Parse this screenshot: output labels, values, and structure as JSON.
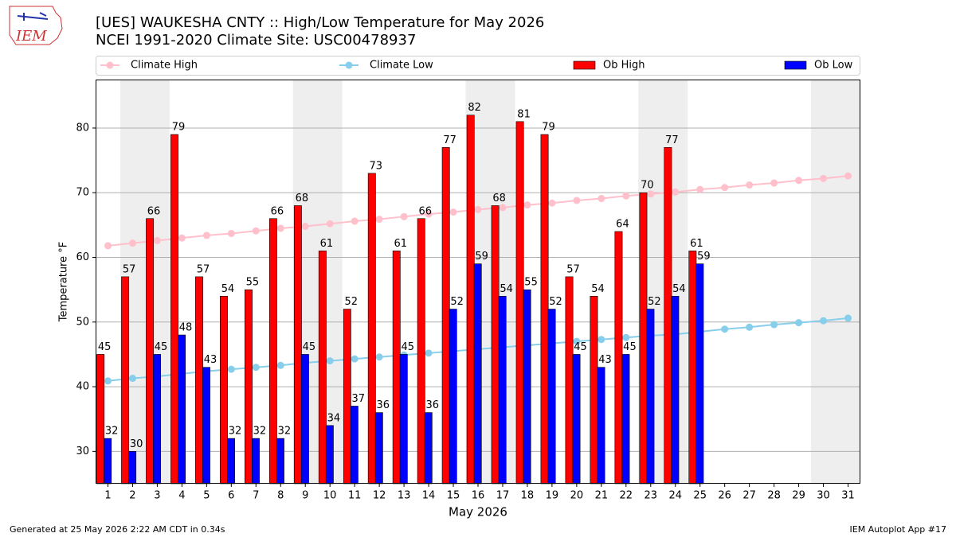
{
  "logo": "IEM",
  "footer_left": "Generated at 25 May 2026 2:22 AM CDT in 0.34s",
  "footer_right": "IEM Autoplot App #17",
  "chart_data": {
    "type": "bar",
    "title": "[UES] WAUKESHA CNTY :: High/Low Temperature for May 2026",
    "subtitle": "NCEI 1991-2020 Climate Site: USC00478937",
    "x_label": "May 2026",
    "y_label": "Temperature °F",
    "categories": [
      "1",
      "2",
      "3",
      "4",
      "5",
      "6",
      "7",
      "8",
      "9",
      "10",
      "11",
      "12",
      "13",
      "14",
      "15",
      "16",
      "17",
      "18",
      "19",
      "20",
      "21",
      "22",
      "23",
      "24",
      "25",
      "26",
      "27",
      "28",
      "29",
      "30",
      "31"
    ],
    "ylim": [
      25,
      87.5
    ],
    "yticks": [
      30,
      40,
      50,
      60,
      70,
      80
    ],
    "grid": true,
    "series": [
      {
        "name": "Climate High",
        "type": "line",
        "color": "#ffc0cb",
        "values": [
          61.8,
          62.2,
          62.6,
          63.0,
          63.4,
          63.7,
          64.1,
          64.5,
          64.8,
          65.2,
          65.6,
          65.9,
          66.3,
          66.7,
          67.0,
          67.4,
          67.7,
          68.1,
          68.4,
          68.8,
          69.1,
          69.5,
          69.8,
          70.1,
          70.5,
          70.8,
          71.2,
          71.5,
          71.9,
          72.2,
          72.6
        ]
      },
      {
        "name": "Climate Low",
        "type": "line",
        "color": "#87ceeb",
        "values": [
          40.9,
          41.3,
          41.6,
          42.0,
          42.4,
          42.7,
          43.0,
          43.3,
          43.7,
          44.0,
          44.3,
          44.6,
          44.9,
          45.2,
          45.5,
          45.8,
          46.1,
          46.4,
          46.7,
          47.0,
          47.3,
          47.6,
          47.9,
          48.1,
          48.5,
          48.9,
          49.2,
          49.6,
          49.9,
          50.2,
          50.6
        ]
      },
      {
        "name": "Ob High",
        "type": "bar",
        "color": "#ff0000",
        "values": [
          45,
          57,
          66,
          79,
          57,
          54,
          55,
          66,
          68,
          61,
          52,
          73,
          61,
          66,
          77,
          82,
          68,
          81,
          79,
          57,
          54,
          64,
          70,
          77,
          61,
          null,
          null,
          null,
          null,
          null,
          null
        ]
      },
      {
        "name": "Ob Low",
        "type": "bar",
        "color": "#0000ff",
        "values": [
          32,
          30,
          45,
          48,
          43,
          32,
          32,
          32,
          45,
          34,
          37,
          36,
          45,
          36,
          52,
          59,
          54,
          55,
          52,
          45,
          43,
          45,
          52,
          54,
          59,
          null,
          null,
          null,
          null,
          null,
          null
        ]
      }
    ]
  }
}
